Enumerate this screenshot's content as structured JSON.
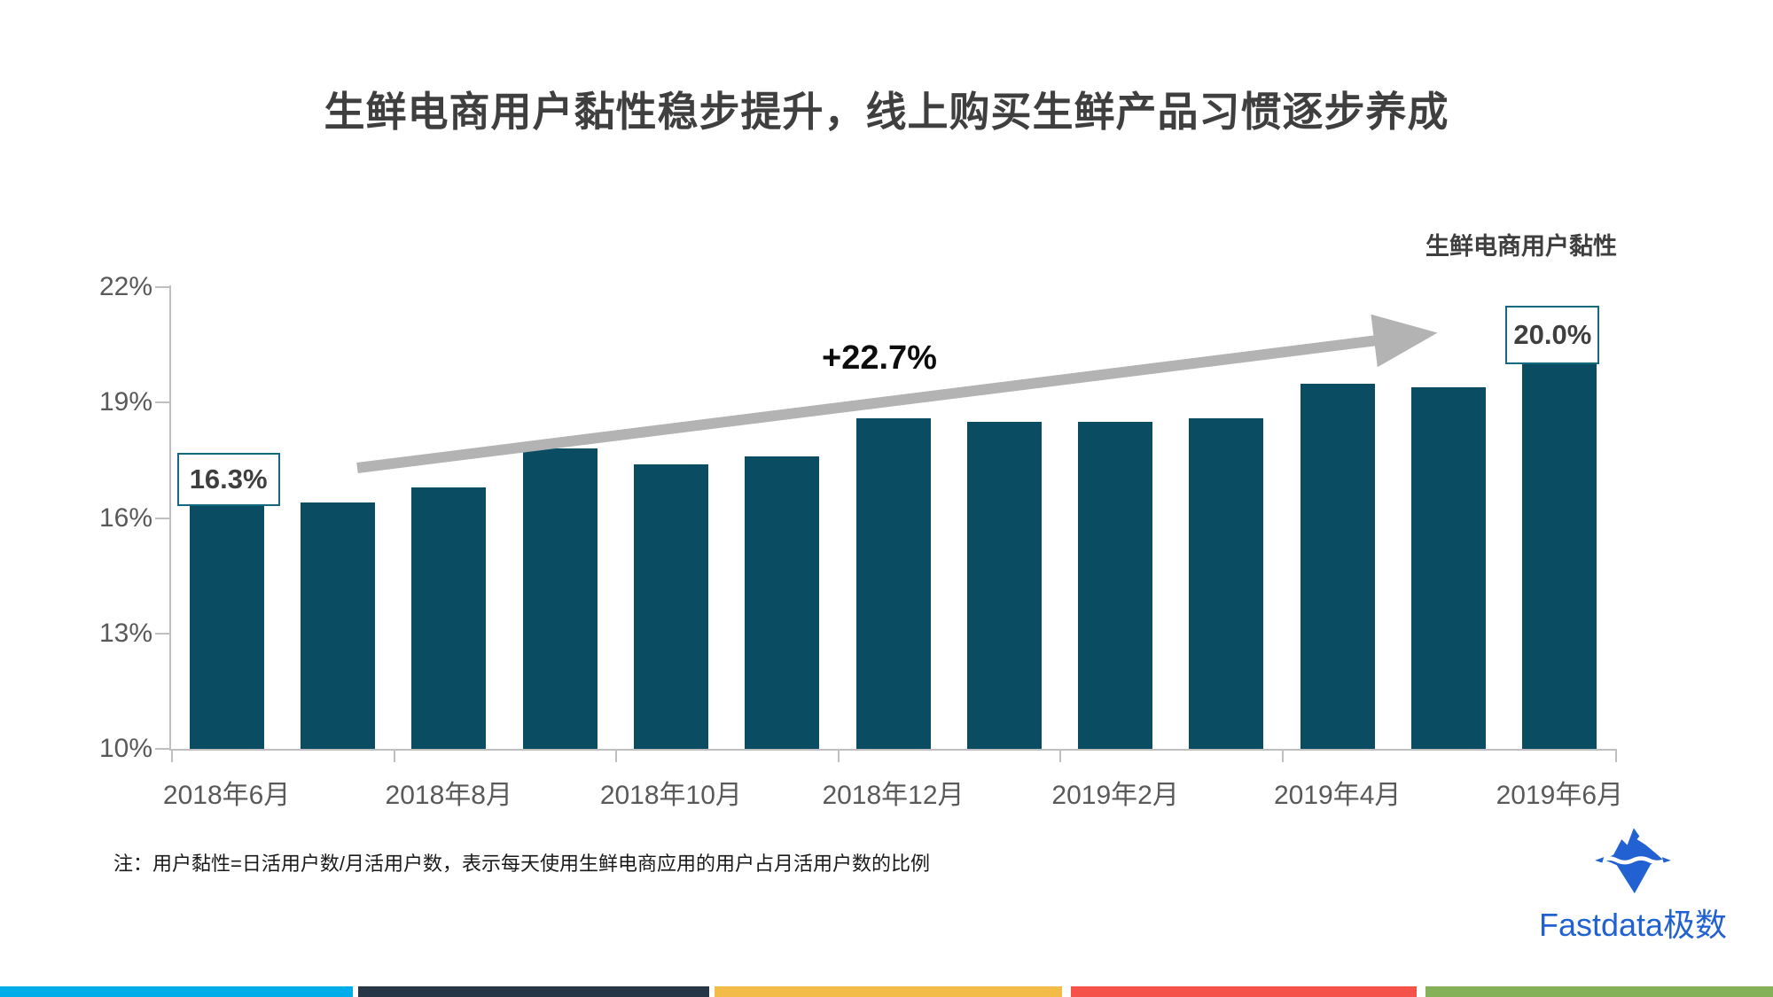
{
  "title": "生鲜电商用户黏性稳步提升，线上购买生鲜产品习惯逐步养成",
  "legend": "生鲜电商用户黏性",
  "note": "注：用户黏性=日活用户数/月活用户数，表示每天使用生鲜电商应用的用户占月活用户数的比例",
  "logo": {
    "text": "Fastdata极数",
    "icon": "iceberg-icon",
    "color": "#2161d2"
  },
  "annotations": {
    "growth_label": "+22.7%",
    "first_bar_label": "16.3%",
    "last_bar_label": "20.0%",
    "arrow_color": "#b3b3b3"
  },
  "chart_data": {
    "type": "bar",
    "title": "生鲜电商用户黏性",
    "categories": [
      "2018年6月",
      "2018年7月",
      "2018年8月",
      "2018年9月",
      "2018年10月",
      "2018年11月",
      "2018年12月",
      "2019年1月",
      "2019年2月",
      "2019年3月",
      "2019年4月",
      "2019年5月",
      "2019年6月"
    ],
    "values": [
      16.3,
      16.4,
      16.8,
      17.8,
      17.4,
      17.6,
      18.6,
      18.5,
      18.5,
      18.6,
      19.5,
      19.4,
      20.0
    ],
    "x_tick_labels": [
      "2018年6月",
      "2018年8月",
      "2018年10月",
      "2018年12月",
      "2019年2月",
      "2019年4月",
      "2019年6月"
    ],
    "ylim": [
      10,
      22
    ],
    "yticks": [
      22,
      19,
      16,
      13,
      10
    ],
    "ytick_suffix": "%",
    "bar_color": "#0a4d63",
    "grid": false,
    "legend_position": "top-right"
  },
  "footer_stripe": {
    "colors": [
      "#00ade8",
      "#273647",
      "#f3bc48",
      "#f5524a",
      "#85b259"
    ]
  }
}
